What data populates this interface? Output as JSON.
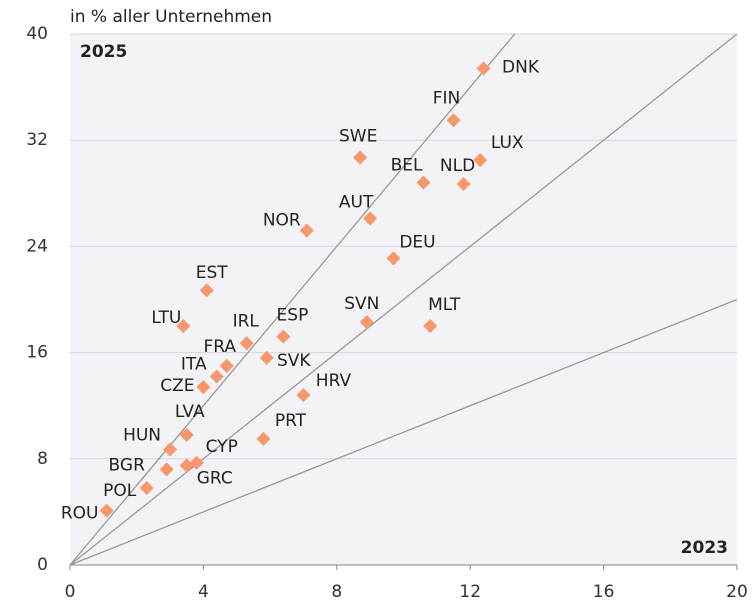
{
  "chart_data": {
    "type": "scatter",
    "y_label": "in % aller Unternehmen",
    "corner_y": "2025",
    "corner_x": "2023",
    "color": "#f7976b",
    "series": [
      {
        "name": null,
        "color": "#f7976b",
        "labels": [
          "DNK",
          "FIN",
          "LUX",
          "SWE",
          "BEL",
          "NLD",
          "AUT",
          "NOR",
          "DEU",
          "EST",
          "LTU",
          "SVN",
          "MLT",
          "IRL",
          "ESP",
          "FRA",
          "SVK",
          "ITA",
          "CZE",
          "HRV",
          "LVA",
          "PRT",
          "HUN",
          "CYP",
          "BGR",
          "GRC",
          "POL",
          "ROU"
        ],
        "x": [
          12.4,
          11.5,
          12.3,
          8.7,
          10.6,
          11.8,
          9.0,
          7.1,
          9.7,
          4.1,
          3.4,
          8.9,
          10.8,
          5.3,
          6.4,
          4.7,
          5.9,
          4.4,
          4.0,
          7.0,
          3.5,
          5.8,
          3.0,
          3.8,
          2.9,
          3.5,
          2.3,
          1.1
        ],
        "values": [
          37.4,
          33.5,
          30.5,
          30.7,
          28.8,
          28.7,
          26.1,
          25.2,
          23.1,
          20.7,
          18.0,
          18.3,
          18.0,
          16.7,
          17.2,
          15.0,
          15.6,
          14.2,
          13.4,
          12.8,
          9.8,
          9.5,
          8.7,
          7.7,
          7.2,
          7.5,
          5.8,
          4.1
        ]
      }
    ],
    "xlim": [
      0,
      20
    ],
    "xticks": [
      0,
      4,
      8,
      12,
      16,
      20
    ],
    "ylim": [
      0,
      40
    ],
    "yticks": [
      0,
      8,
      16,
      24,
      32,
      40
    ],
    "grid": true
  }
}
